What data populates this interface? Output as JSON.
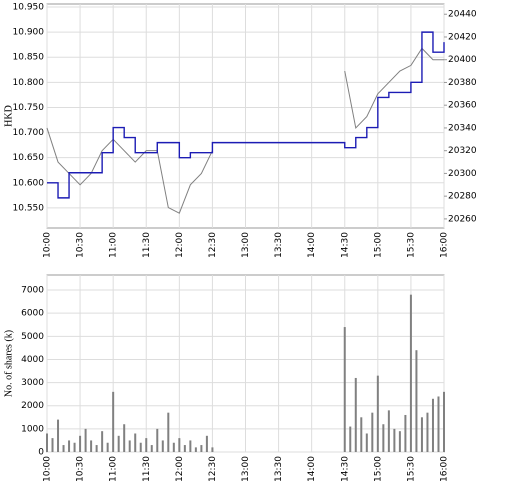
{
  "chart_data": [
    {
      "type": "line",
      "y_label": "HKD",
      "x": [
        "10:00",
        "10:10",
        "10:20",
        "10:30",
        "10:40",
        "10:50",
        "11:00",
        "11:10",
        "11:20",
        "11:30",
        "11:40",
        "11:50",
        "12:00",
        "12:10",
        "12:20",
        "12:30",
        "12:40",
        "12:50",
        "13:00",
        "13:10",
        "13:20",
        "13:30",
        "13:40",
        "13:50",
        "14:00",
        "14:10",
        "14:20",
        "14:30",
        "14:40",
        "14:50",
        "15:00",
        "15:10",
        "15:20",
        "15:30",
        "15:40",
        "15:50",
        "16:00"
      ],
      "series": [
        {
          "color": "#808080",
          "axis": "y2",
          "values": [
            20340,
            20310,
            20300,
            20290,
            20300,
            20320,
            20330,
            20320,
            20310,
            20320,
            20320,
            20270,
            20265,
            20290,
            20300,
            20320,
            null,
            null,
            null,
            null,
            null,
            null,
            null,
            null,
            null,
            null,
            null,
            20390,
            20340,
            20350,
            20370,
            20380,
            20390,
            20395,
            20410,
            20400,
            20400
          ]
        },
        {
          "color": "#1c1cb4",
          "step": true,
          "values": [
            10.6,
            10.57,
            10.62,
            10.62,
            10.62,
            10.66,
            10.71,
            10.69,
            10.66,
            10.66,
            10.68,
            10.68,
            10.65,
            10.66,
            10.66,
            10.68,
            10.68,
            10.68,
            10.68,
            10.68,
            10.68,
            10.68,
            10.68,
            10.68,
            10.68,
            10.68,
            10.68,
            10.67,
            10.69,
            10.71,
            10.77,
            10.78,
            10.78,
            10.8,
            10.9,
            10.86,
            10.88
          ]
        }
      ],
      "xticks": [
        "10:00",
        "10:30",
        "11:00",
        "11:30",
        "12:00",
        "12:30",
        "13:00",
        "13:30",
        "14:00",
        "14:30",
        "15:00",
        "15:30",
        "16:00"
      ],
      "ylim": [
        10.51,
        10.956
      ],
      "yticks": [
        {
          "value": 10.55,
          "label": "10.550"
        },
        {
          "value": 10.6,
          "label": "10.600"
        },
        {
          "value": 10.65,
          "label": "10.650"
        },
        {
          "value": 10.7,
          "label": "10.700"
        },
        {
          "value": 10.75,
          "label": "10.750"
        },
        {
          "value": 10.8,
          "label": "10.800"
        },
        {
          "value": 10.85,
          "label": "10.850"
        },
        {
          "value": 10.9,
          "label": "10.900"
        },
        {
          "value": 10.95,
          "label": "10.950"
        }
      ],
      "y2lim": [
        20252,
        20449
      ],
      "y2ticks": [
        20260,
        20280,
        20300,
        20320,
        20340,
        20360,
        20380,
        20400,
        20420,
        20440
      ],
      "grid": true
    },
    {
      "type": "bar",
      "y_label": "No. of shares (k)",
      "color": "#808080",
      "x": [
        "10:00",
        "10:05",
        "10:10",
        "10:15",
        "10:20",
        "10:25",
        "10:30",
        "10:35",
        "10:40",
        "10:45",
        "10:50",
        "10:55",
        "11:00",
        "11:05",
        "11:10",
        "11:15",
        "11:20",
        "11:25",
        "11:30",
        "11:35",
        "11:40",
        "11:45",
        "11:50",
        "11:55",
        "12:00",
        "12:05",
        "12:10",
        "12:15",
        "12:20",
        "12:25",
        "12:30",
        "14:30",
        "14:35",
        "14:40",
        "14:45",
        "14:50",
        "14:55",
        "15:00",
        "15:05",
        "15:10",
        "15:15",
        "15:20",
        "15:25",
        "15:30",
        "15:35",
        "15:40",
        "15:45",
        "15:50",
        "15:55",
        "16:00"
      ],
      "values": [
        800,
        600,
        1400,
        300,
        500,
        400,
        700,
        1000,
        500,
        300,
        900,
        400,
        2600,
        700,
        1200,
        500,
        800,
        400,
        600,
        300,
        1000,
        500,
        1700,
        400,
        600,
        300,
        500,
        200,
        300,
        700,
        200,
        5400,
        1100,
        3200,
        1500,
        800,
        1700,
        3300,
        1200,
        1800,
        1000,
        900,
        1600,
        6800,
        4400,
        1500,
        1700,
        2300,
        2400,
        2600
      ],
      "xticks": [
        "10:00",
        "10:30",
        "11:00",
        "11:30",
        "12:00",
        "12:30",
        "13:00",
        "13:30",
        "14:00",
        "14:30",
        "15:00",
        "15:30",
        "16:00"
      ],
      "ylim": [
        0,
        7650
      ],
      "yticks": [
        0,
        1000,
        2000,
        3000,
        4000,
        5000,
        6000,
        7000
      ],
      "grid": true
    }
  ]
}
